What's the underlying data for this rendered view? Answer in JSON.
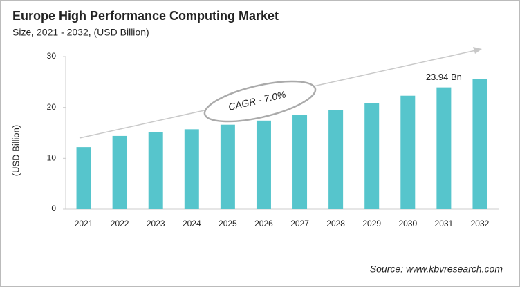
{
  "chart_data": {
    "type": "bar",
    "title": "Europe High Performance Computing Market",
    "subtitle": "Size, 2021 - 2032, (USD Billion)",
    "y_label": "(USD Billion)",
    "annotation": "CAGR - 7.0%",
    "source": "Source: www.kbvresearch.com",
    "categories": [
      "2021",
      "2022",
      "2023",
      "2024",
      "2025",
      "2026",
      "2027",
      "2028",
      "2029",
      "2030",
      "2031",
      "2032"
    ],
    "values": [
      12.2,
      14.4,
      15.1,
      15.7,
      16.6,
      17.4,
      18.5,
      19.5,
      20.8,
      22.3,
      23.94,
      25.6
    ],
    "value_labels": [
      null,
      null,
      null,
      null,
      null,
      null,
      null,
      null,
      null,
      null,
      "23.94 Bn",
      null
    ],
    "color": "#56c5cc",
    "ylim": [
      0,
      30
    ],
    "yticks": [
      0,
      10,
      20,
      30
    ],
    "grid": false
  }
}
